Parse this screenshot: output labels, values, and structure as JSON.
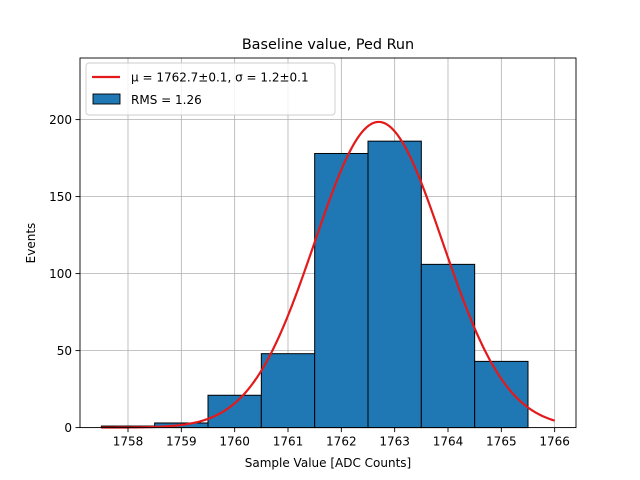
{
  "chart_data": {
    "type": "bar",
    "title": "Baseline value, Ped Run",
    "xlabel": "Sample Value [ADC Counts]",
    "ylabel": "Events",
    "xlim": [
      1757.1,
      1766.4
    ],
    "ylim": [
      0,
      240
    ],
    "grid": true,
    "legend_position": "top-left",
    "x_ticks": [
      1758,
      1759,
      1760,
      1761,
      1762,
      1763,
      1764,
      1765,
      1766
    ],
    "y_ticks": [
      0,
      50,
      100,
      150,
      200
    ],
    "histogram": {
      "name": "RMS = 1.26",
      "color": "#1f77b4",
      "edgecolor": "#000000",
      "bin_edges": [
        1757.5,
        1758.5,
        1759.5,
        1760.5,
        1761.5,
        1762.5,
        1763.5,
        1764.5,
        1765.5
      ],
      "values": [
        1,
        3,
        21,
        48,
        178,
        186,
        106,
        43
      ]
    },
    "fit": {
      "name": "$\\mu = 1762.7\\pm0.1$, $\\sigma = 1.2\\pm0.1$",
      "legend_label_rendered": "μ = 1762.7±0.1, σ = 1.2±0.1",
      "color": "#e31a1c",
      "mu": 1762.7,
      "sigma": 1.2,
      "peak": 198.5,
      "x_range": [
        1757.5,
        1766
      ]
    }
  }
}
